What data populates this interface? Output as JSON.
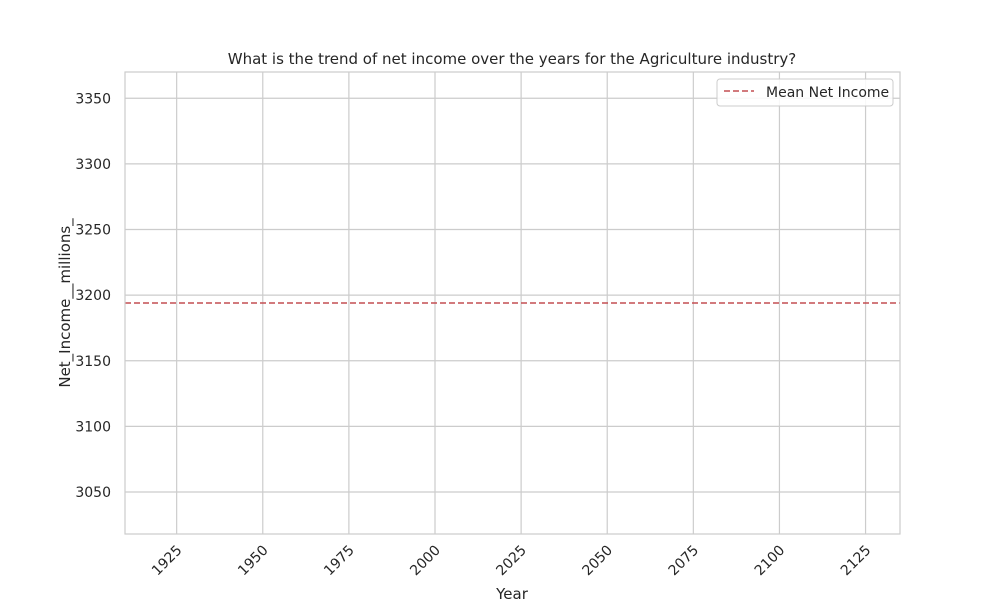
{
  "chart_data": {
    "type": "line",
    "title": "What is the trend of net income over the years for the Agriculture industry?",
    "xlabel": "Year",
    "ylabel": "Net_Income__millions_",
    "xlim": [
      1910,
      2135
    ],
    "ylim": [
      3018,
      3370
    ],
    "x_ticks": [
      1925,
      1950,
      1975,
      2000,
      2025,
      2050,
      2075,
      2100,
      2125
    ],
    "y_ticks": [
      3050,
      3100,
      3150,
      3200,
      3250,
      3300,
      3350
    ],
    "grid": true,
    "legend_position": "top-right",
    "series": [
      {
        "name": "Mean Net Income",
        "style": "dashed",
        "color": "#c44e52",
        "kind": "horizontal-line",
        "y": 3194
      }
    ]
  }
}
